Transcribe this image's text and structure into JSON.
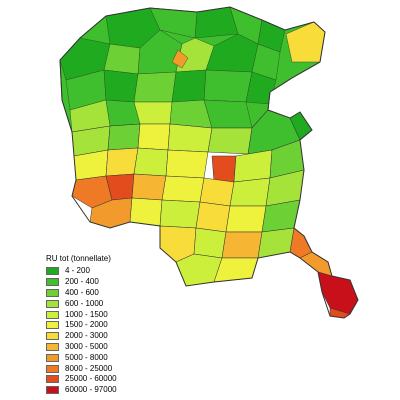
{
  "map": {
    "legend": {
      "title": "RU tot (tonnellate)",
      "classes": [
        {
          "label": "4 - 200",
          "color": "#1faa1f"
        },
        {
          "label": "200 - 400",
          "color": "#3fbe2e"
        },
        {
          "label": "400 - 600",
          "color": "#6dd034"
        },
        {
          "label": "600 - 1000",
          "color": "#a6e33a"
        },
        {
          "label": "1000 - 1500",
          "color": "#ccef3c"
        },
        {
          "label": "1500 - 2000",
          "color": "#eef23c"
        },
        {
          "label": "2000 - 3000",
          "color": "#f8dd3a"
        },
        {
          "label": "3000 - 5000",
          "color": "#f6b532"
        },
        {
          "label": "5000 - 8000",
          "color": "#f39a2c"
        },
        {
          "label": "8000 - 25000",
          "color": "#ee7a26"
        },
        {
          "label": "25000 - 60000",
          "color": "#e34d1e"
        },
        {
          "label": "60000 - 97000",
          "color": "#c8101a"
        }
      ]
    },
    "region_border_color": "#333333"
  }
}
